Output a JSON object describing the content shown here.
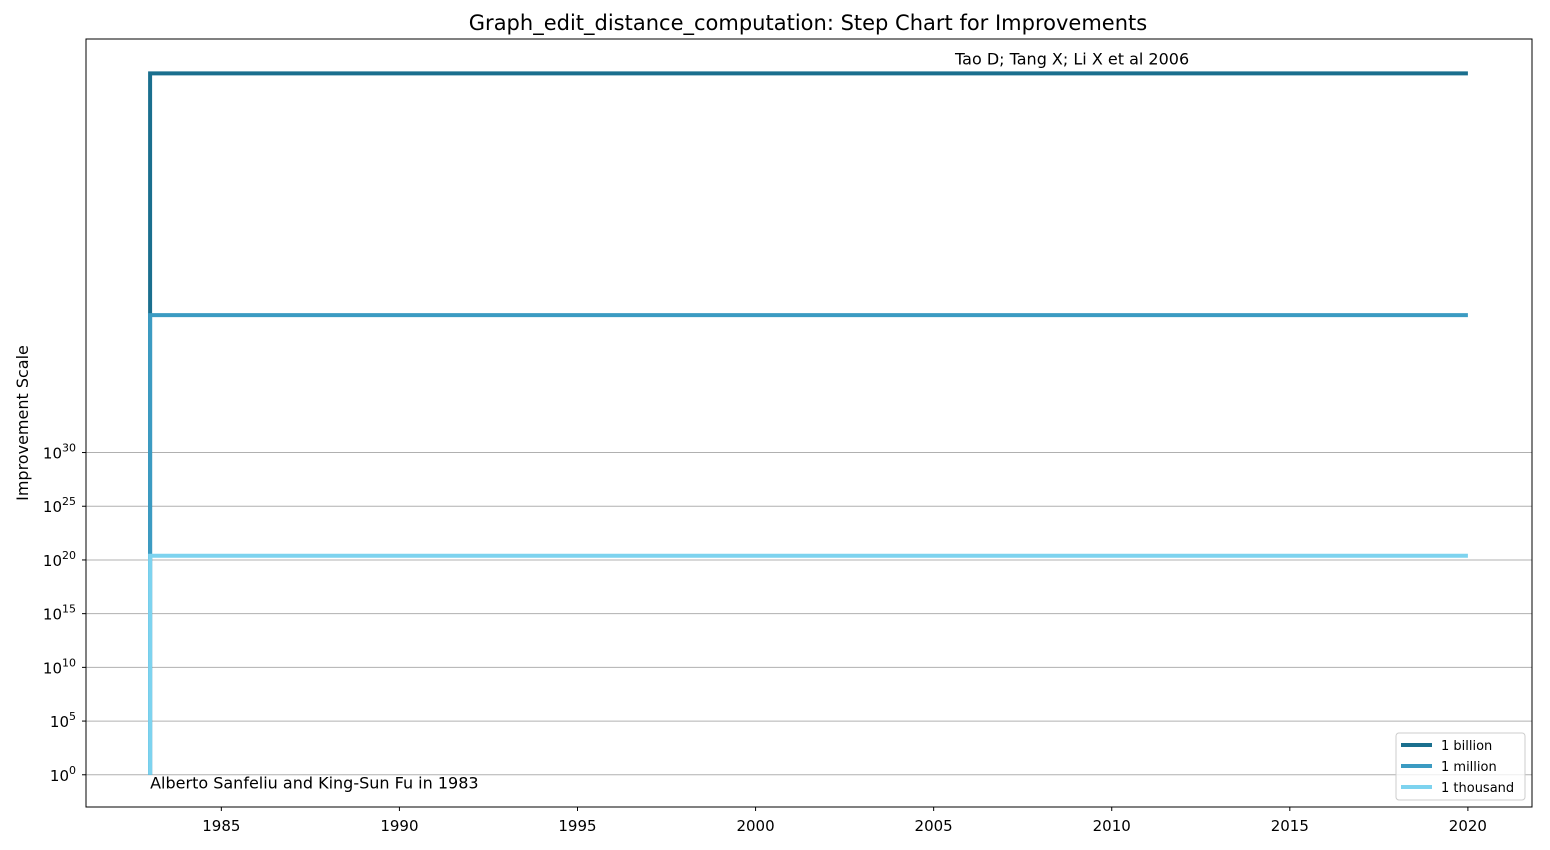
{
  "chart_data": {
    "type": "line",
    "step": true,
    "title": "Graph_edit_distance_computation: Step Chart for Improvements",
    "xlabel": "",
    "ylabel": "Improvement Scale",
    "xlim": [
      1981.2,
      2021.8
    ],
    "xticks": [
      "1985",
      "1990",
      "1995",
      "2000",
      "2005",
      "2010",
      "2015",
      "2020"
    ],
    "y_scale": "log",
    "ylim_log10": [
      -3,
      68.5
    ],
    "yticks": [
      {
        "base": "10",
        "exp": "0"
      },
      {
        "base": "10",
        "exp": "5"
      },
      {
        "base": "10",
        "exp": "10"
      },
      {
        "base": "10",
        "exp": "15"
      },
      {
        "base": "10",
        "exp": "20"
      },
      {
        "base": "10",
        "exp": "25"
      },
      {
        "base": "10",
        "exp": "30"
      }
    ],
    "grid": "horizontal",
    "legend_position": "lower-right",
    "series": [
      {
        "name": "1 billion",
        "color": "#1a6f8e",
        "points": [
          {
            "x": 1983,
            "log10_y": 0
          },
          {
            "x": 1983,
            "log10_y": 65.3
          },
          {
            "x": 2020,
            "log10_y": 65.3
          }
        ]
      },
      {
        "name": "1 million",
        "color": "#3b9bc2",
        "points": [
          {
            "x": 1983,
            "log10_y": 0
          },
          {
            "x": 1983,
            "log10_y": 42.8
          },
          {
            "x": 2020,
            "log10_y": 42.8
          }
        ]
      },
      {
        "name": "1 thousand",
        "color": "#7dd3ef",
        "points": [
          {
            "x": 1983,
            "log10_y": 0
          },
          {
            "x": 1983,
            "log10_y": 20.4
          },
          {
            "x": 2020,
            "log10_y": 20.4
          }
        ]
      }
    ],
    "annotations": [
      {
        "text": "Alberto Sanfeliu and King-Sun Fu in 1983",
        "x": 1983,
        "log10_y": -0.7
      },
      {
        "text": "Tao D; Tang X; Li X et al 2006",
        "x": 2005.6,
        "log10_y": 66.7
      }
    ]
  }
}
